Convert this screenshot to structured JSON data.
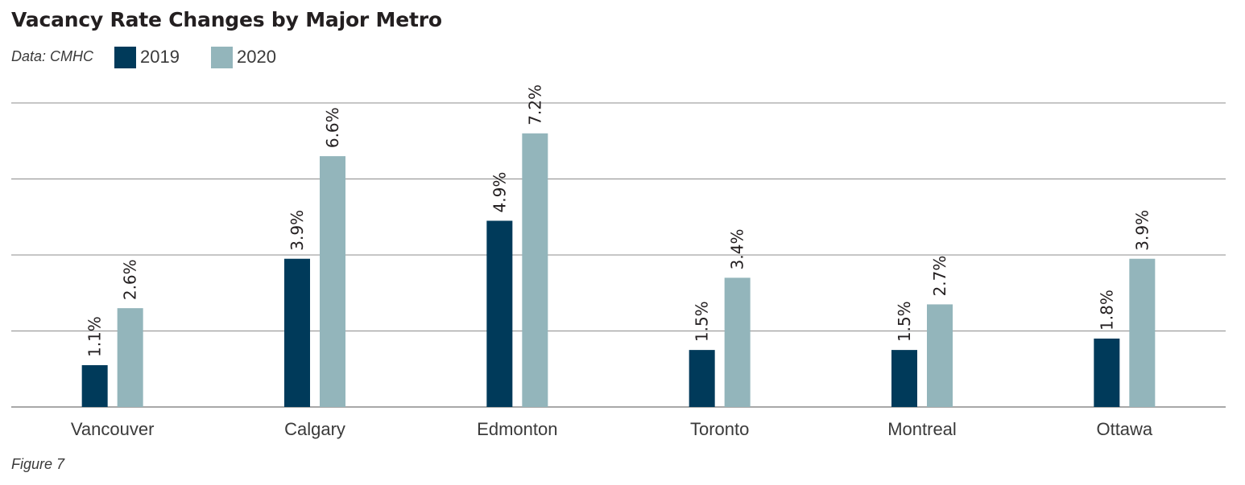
{
  "page": {
    "title": "Vacancy Rate Changes by Major Metro",
    "source": "Data: CMHC",
    "footer": "Figure 7"
  },
  "colors": {
    "series_2019": "#003a5a",
    "series_2020": "#93b5bb",
    "grid": "#8c8c8c"
  },
  "chart_data": {
    "type": "bar",
    "title": "Vacancy Rate Changes by Major Metro",
    "categories": [
      "Vancouver",
      "Calgary",
      "Edmonton",
      "Toronto",
      "Montreal",
      "Ottawa"
    ],
    "series": [
      {
        "name": "2019",
        "values": [
          1.1,
          3.9,
          4.9,
          1.5,
          1.5,
          1.8
        ],
        "labels": [
          "1.1%",
          "3.9%",
          "4.9%",
          "1.5%",
          "1.5%",
          "1.8%"
        ]
      },
      {
        "name": "2020",
        "values": [
          2.6,
          6.6,
          7.2,
          3.4,
          2.7,
          3.9
        ],
        "labels": [
          "2.6%",
          "6.6%",
          "7.2%",
          "3.4%",
          "2.7%",
          "3.9%"
        ]
      }
    ],
    "ylim": [
      0,
      8
    ],
    "grid": true,
    "legend_position": "top-left",
    "data_labels": "rotated"
  }
}
